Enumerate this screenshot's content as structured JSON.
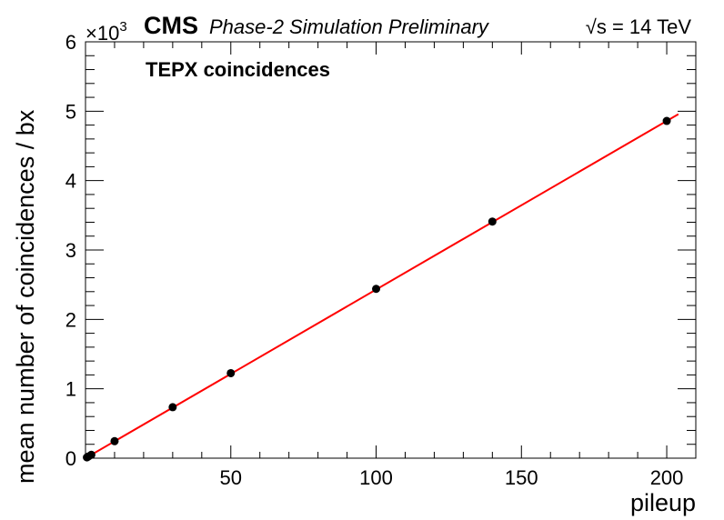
{
  "header": {
    "experiment": "CMS",
    "subtitle": "Phase-2 Simulation Preliminary",
    "energy_prefix": "√s",
    "energy_text": " = 14 TeV"
  },
  "chart_data": {
    "type": "scatter",
    "annotation": "TEPX coincidences",
    "xlabel": "pileup",
    "ylabel": "mean number of coincidences / bx",
    "y_multiplier_base": "×10",
    "y_multiplier_exp": "3",
    "xlim": [
      0,
      210
    ],
    "ylim": [
      0,
      6
    ],
    "x_ticks": [
      50,
      100,
      150,
      200
    ],
    "x_tick_labels": [
      "50",
      "100",
      "150",
      "200"
    ],
    "y_ticks": [
      0,
      1,
      2,
      3,
      4,
      5,
      6
    ],
    "y_tick_labels": [
      "0",
      "1",
      "2",
      "3",
      "4",
      "5",
      "6"
    ],
    "grid": false,
    "series": [
      {
        "type": "points",
        "color": "#000000",
        "points": [
          {
            "x": 0.5,
            "y": 0.012
          },
          {
            "x": 1,
            "y": 0.025
          },
          {
            "x": 2,
            "y": 0.049
          },
          {
            "x": 10,
            "y": 0.245
          },
          {
            "x": 30,
            "y": 0.735
          },
          {
            "x": 50,
            "y": 1.225
          },
          {
            "x": 100,
            "y": 2.44
          },
          {
            "x": 140,
            "y": 3.41
          },
          {
            "x": 200,
            "y": 4.86
          }
        ]
      },
      {
        "type": "fit-line",
        "color": "#ff0000",
        "x_range": [
          0,
          204
        ],
        "slope": 0.0243,
        "intercept": 0.0
      }
    ]
  }
}
